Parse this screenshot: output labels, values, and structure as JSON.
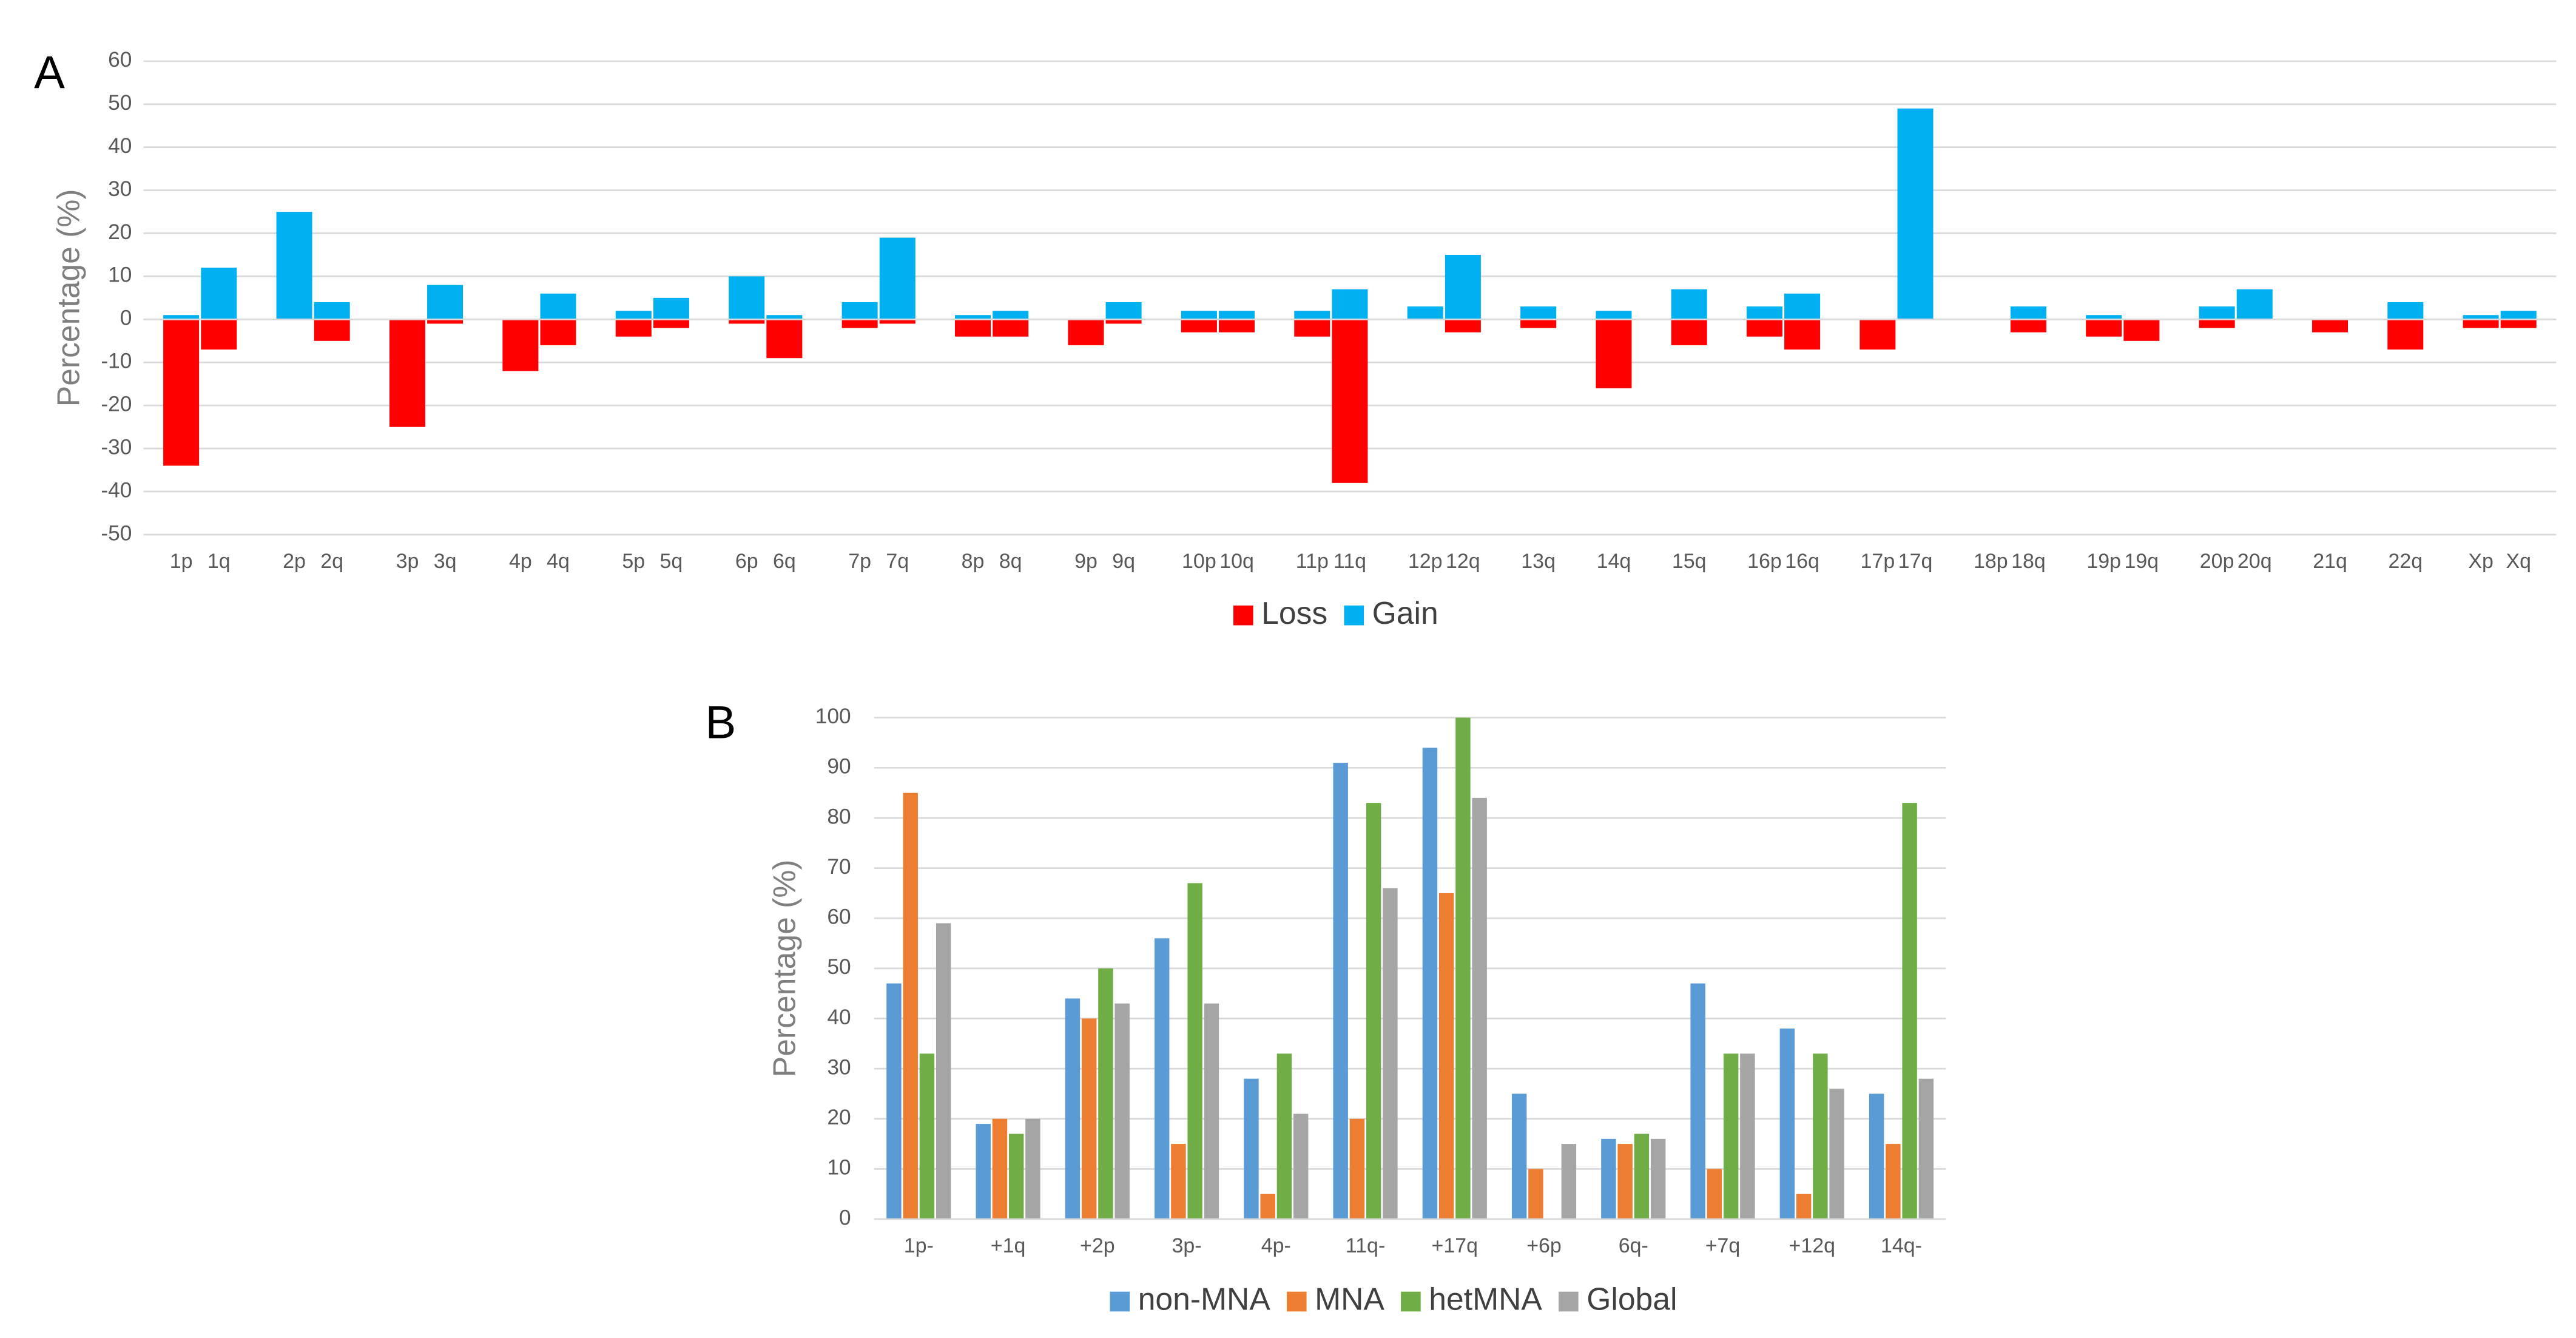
{
  "chart_data": [
    {
      "type": "bar",
      "label": "A",
      "ylabel": "Percentage (%)",
      "bar_mode": "overlay",
      "categories": [
        "1p",
        "1q",
        "2p",
        "2q",
        "3p",
        "3q",
        "4p",
        "4q",
        "5p",
        "5q",
        "6p",
        "6q",
        "7p",
        "7q",
        "8p",
        "8q",
        "9p",
        "9q",
        "10p",
        "10q",
        "11p",
        "11q",
        "12p",
        "12q",
        "13q",
        "14q",
        "15q",
        "16p",
        "16q",
        "17p",
        "17q",
        "18p",
        "18q",
        "19p",
        "19q",
        "20p",
        "20q",
        "21q",
        "22q",
        "Xp",
        "Xq"
      ],
      "series": [
        {
          "name": "Loss",
          "color": "#ff0000",
          "values": [
            -34,
            -7,
            0,
            -5,
            -25,
            -1,
            -12,
            -6,
            -4,
            -2,
            -1,
            -9,
            -2,
            -1,
            -4,
            -4,
            -6,
            -1,
            -3,
            -3,
            -4,
            -38,
            0,
            -3,
            -2,
            -16,
            -6,
            -4,
            -7,
            -7,
            0,
            0,
            -3,
            -4,
            -5,
            -2,
            0,
            -3,
            -7,
            -2,
            -2
          ]
        },
        {
          "name": "Gain",
          "color": "#00b0f0",
          "values": [
            1,
            12,
            25,
            4,
            0,
            8,
            0,
            6,
            2,
            5,
            10,
            1,
            4,
            19,
            1,
            2,
            0,
            4,
            2,
            2,
            2,
            7,
            3,
            15,
            3,
            2,
            7,
            3,
            6,
            0,
            49,
            0,
            3,
            1,
            0,
            3,
            7,
            0,
            4,
            1,
            2
          ]
        }
      ],
      "ylim": [
        -50,
        60
      ],
      "yticks": [
        60,
        50,
        40,
        30,
        20,
        10,
        0,
        -10,
        -20,
        -30,
        -40,
        -50
      ],
      "grid": true,
      "legend": "bottom"
    },
    {
      "type": "bar",
      "label": "B",
      "ylabel": "Percentage (%)",
      "bar_mode": "grouped",
      "categories": [
        "1p-",
        "+1q",
        "+2p",
        "3p-",
        "4p-",
        "11q-",
        "+17q",
        "+6p",
        "6q-",
        "+7q",
        "+12q",
        "14q-"
      ],
      "series": [
        {
          "name": "non-MNA",
          "color": "#5b9bd5",
          "values": [
            47,
            19,
            44,
            56,
            28,
            91,
            94,
            25,
            16,
            47,
            38,
            25
          ]
        },
        {
          "name": "MNA",
          "color": "#ed7d31",
          "values": [
            85,
            20,
            40,
            15,
            5,
            20,
            65,
            10,
            15,
            10,
            5,
            15
          ]
        },
        {
          "name": "hetMNA",
          "color": "#70ad47",
          "values": [
            33,
            17,
            50,
            67,
            33,
            83,
            100,
            0,
            17,
            33,
            33,
            83
          ]
        },
        {
          "name": "Global",
          "color": "#a5a5a5",
          "values": [
            59,
            20,
            43,
            43,
            21,
            66,
            84,
            15,
            16,
            33,
            26,
            28
          ]
        }
      ],
      "ylim": [
        0,
        100
      ],
      "yticks": [
        0,
        10,
        20,
        30,
        40,
        50,
        60,
        70,
        80,
        90,
        100
      ],
      "grid": true,
      "legend": "bottom"
    }
  ]
}
